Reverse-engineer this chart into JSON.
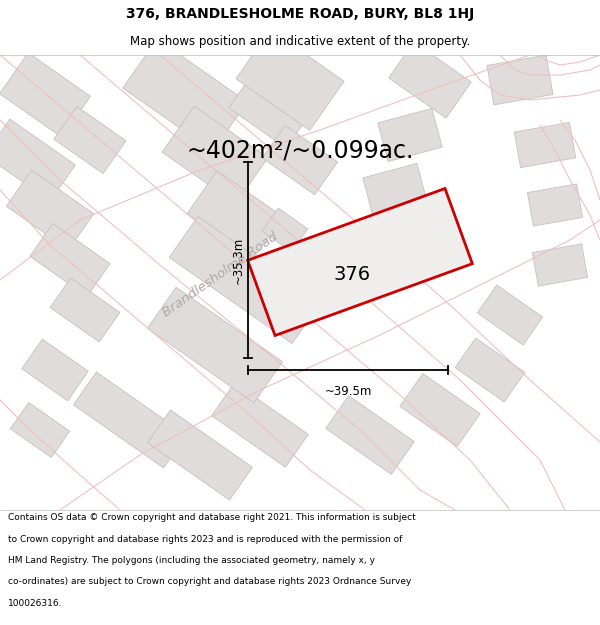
{
  "title": "376, BRANDLESHOLME ROAD, BURY, BL8 1HJ",
  "subtitle": "Map shows position and indicative extent of the property.",
  "area_text": "~402m²/~0.099ac.",
  "property_label": "376",
  "dim_vertical": "~35.3m",
  "dim_horizontal": "~39.5m",
  "road_label": "Brandlesholme Road",
  "footer_lines": [
    "Contains OS data © Crown copyright and database right 2021. This information is subject",
    "to Crown copyright and database rights 2023 and is reproduced with the permission of",
    "HM Land Registry. The polygons (including the associated geometry, namely x, y",
    "co-ordinates) are subject to Crown copyright and database rights 2023 Ordnance Survey",
    "100026316."
  ],
  "map_bg": "#ffffff",
  "property_fill": "#f0eded",
  "property_edge": "#cc0000",
  "building_fill": "#e0dcdc",
  "building_edge": "#c8c0c0",
  "road_line_color": "#f0c0c0",
  "title_fontsize": 10,
  "subtitle_fontsize": 8.5,
  "area_fontsize": 17,
  "label_fontsize": 16,
  "dim_fontsize": 8.5,
  "road_fontsize": 9.5,
  "footer_fontsize": 6.5
}
